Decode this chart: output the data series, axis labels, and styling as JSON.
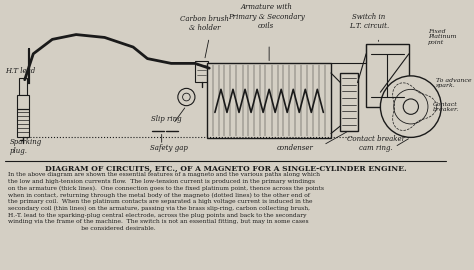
{
  "bg_color": "#d4cfc4",
  "line_color": "#1a1a1a",
  "title": "DIAGRAM OF CIRCUITS, ETC., OF A MAGNETO FOR A SINGLE-CYLINDER ENGINE.",
  "body_text": "In the above diagram are shown the essential features of a magneto and the various paths along which\nthe low and high-tension currents flow.  The low-tension current is produced in the primary windings\non the armature (thick lines).  One connection goes to the fixed platinum point, thence across the points\nwhen in contact, returning through the metal body of the magneto (dotted lines) to the other end of\nthe primary coil.  When the platinum contacts are separated a high voltage current is induced in the\nsecondary coil (thin lines) on the armature, passing via the brass slip-ring, carbon collecting brush,\nH.-T. lead to the sparking-plug central electrode, across the plug points and back to the secondary\nwinding via the frame of the machine.  The switch is not an essential fitting, but may in some cases\n                                       be considered desirable.",
  "labels": {
    "ht_lead": "H.T lead",
    "carbon_brush": "Carbon brush\n& holder",
    "armature": "Armature with\nPrimary & Secondary\ncoils",
    "switch": "Switch in\nL.T. circuit.",
    "fixed_platinum": "Fixed\nPlatinum\npoint",
    "to_advance": "To advance\nspark.",
    "contact_breaker": "Contact\nbreaker.",
    "slip_ring": "Slip ring",
    "safety_gap": "Safety gap",
    "condenser": "condenser",
    "contact_breaker_cam": "Contact breaker\ncam ring.",
    "sparking_plug": "Sparking\nplug."
  }
}
